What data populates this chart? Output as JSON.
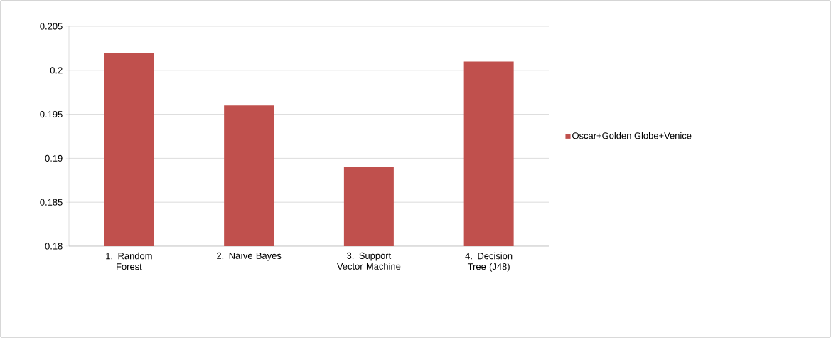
{
  "chart_data": {
    "type": "bar",
    "categories": [
      "1. Random Forest",
      "2. Naïve Bayes",
      "3. Support Vector Machine",
      "4. Decision Tree (J48)"
    ],
    "series": [
      {
        "name": "Oscar+Golden Globe+Venice",
        "color": "#c0504d",
        "values": [
          0.202,
          0.196,
          0.189,
          0.201
        ]
      }
    ],
    "ylim": [
      0.18,
      0.205
    ],
    "yticks": [
      0.18,
      0.185,
      0.19,
      0.195,
      0.2,
      0.205
    ],
    "grid": "y",
    "legend": "right"
  }
}
